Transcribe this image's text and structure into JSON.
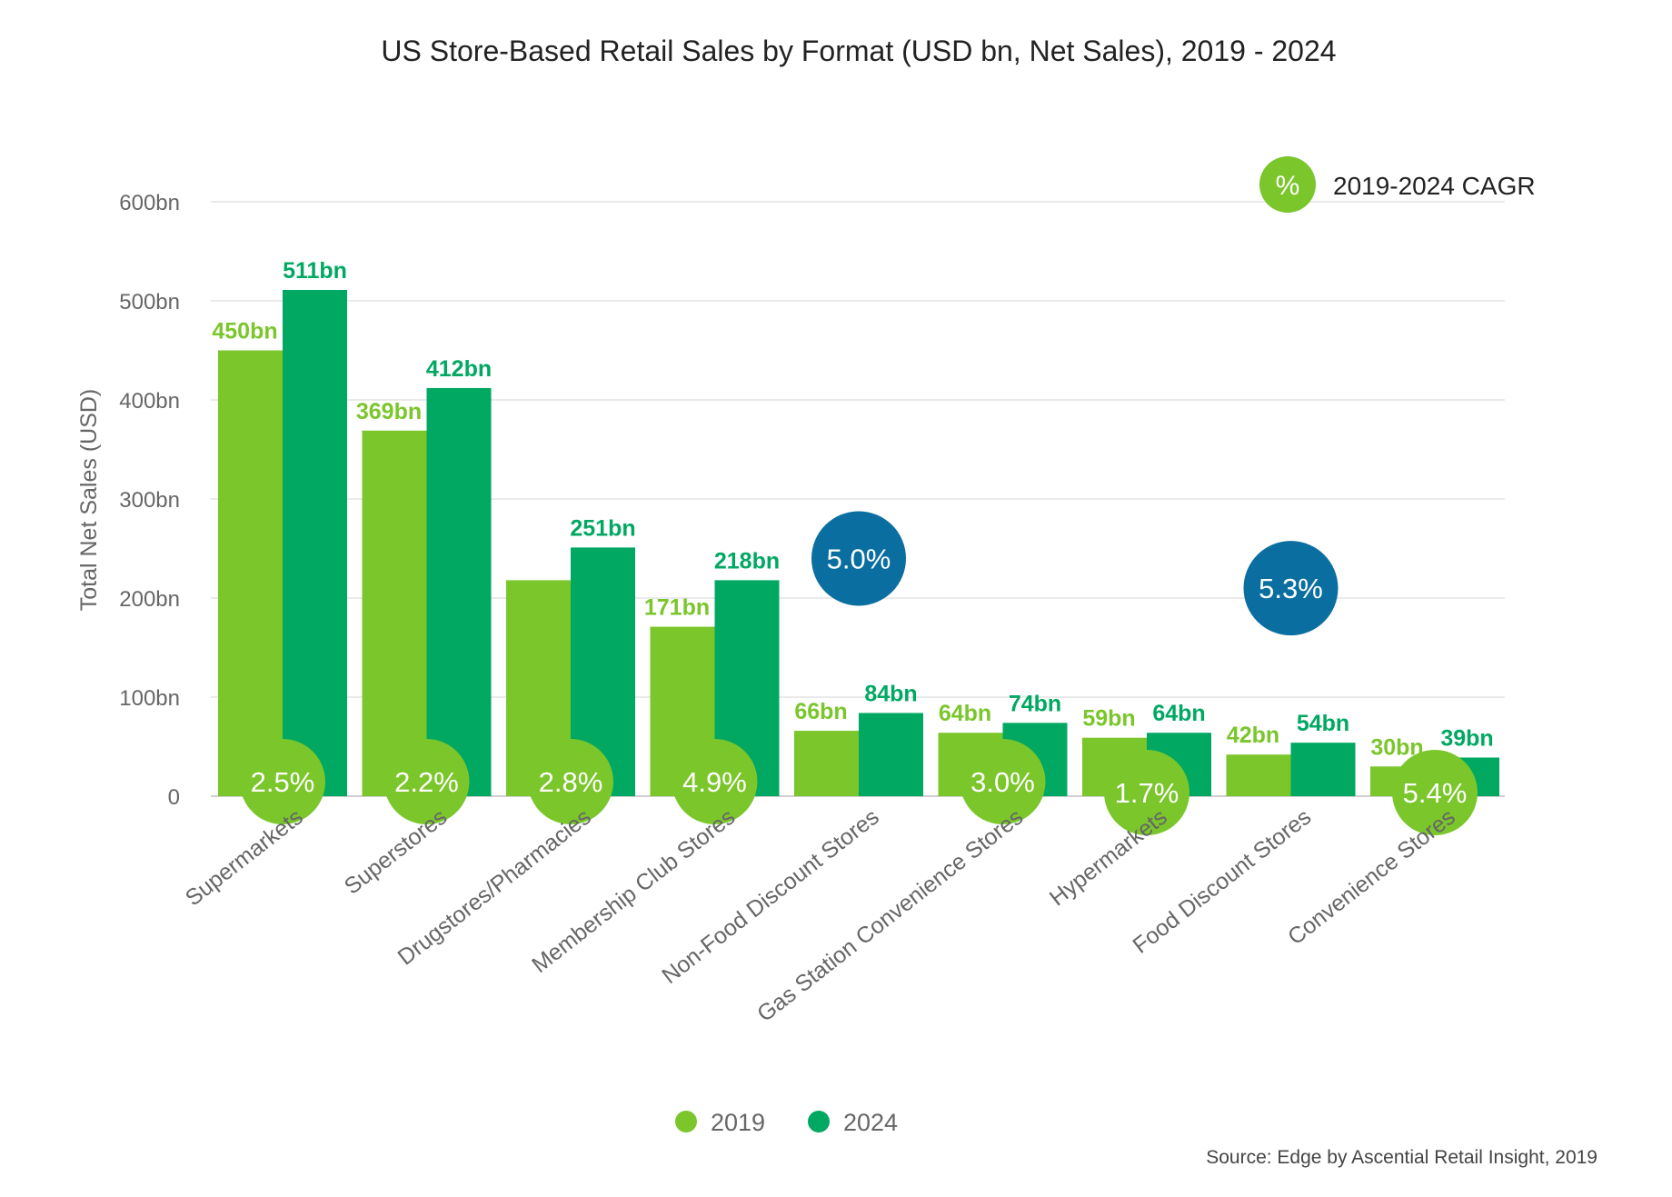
{
  "chart_data": {
    "type": "bar",
    "title": "US Store-Based Retail Sales by Format (USD bn, Net Sales), 2019 - 2024",
    "ylabel": "Total Net Sales (USD)",
    "xlabel": "",
    "ylim": [
      0,
      600
    ],
    "yticks": [
      0,
      100,
      200,
      300,
      400,
      500,
      600
    ],
    "ytick_labels": [
      "0",
      "100bn",
      "200bn",
      "300bn",
      "400bn",
      "500bn",
      "600bn"
    ],
    "grid": true,
    "legend_placement": "bottom-center",
    "categories": [
      "Supermarkets",
      "Superstores",
      "Drugstores/Pharmacies",
      "Membership Club Stores",
      "Non-Food Discount Stores",
      "Gas Station Convenience Stores",
      "Hypermarkets",
      "Food Discount Stores",
      "Convenience Stores"
    ],
    "series": [
      {
        "name": "2019",
        "color": "#7ac62b",
        "values": [
          450,
          369,
          218,
          171,
          66,
          64,
          59,
          42,
          30
        ],
        "labels": [
          "450bn",
          "369bn",
          "",
          "171bn",
          "66bn",
          "64bn",
          "59bn",
          "42bn",
          "30bn"
        ]
      },
      {
        "name": "2024",
        "color": "#00a862",
        "values": [
          511,
          412,
          251,
          218,
          84,
          74,
          64,
          54,
          39
        ],
        "labels": [
          "511bn",
          "412bn",
          "251bn",
          "218bn",
          "84bn",
          "74bn",
          "64bn",
          "54bn",
          "39bn"
        ]
      }
    ],
    "cagr": {
      "values": [
        "2.5%",
        "2.2%",
        "2.8%",
        "4.9%",
        "5.0%",
        "3.0%",
        "1.7%",
        "5.3%",
        "5.4%"
      ],
      "highlighted": [
        false,
        false,
        false,
        false,
        true,
        false,
        false,
        true,
        false
      ],
      "color": "#7ac62b",
      "highlight_color": "#0a6fa0"
    },
    "cagr_legend": {
      "symbol": "%",
      "label": "2019-2024 CAGR"
    },
    "source": "Source: Edge by Ascential Retail Insight, 2019"
  }
}
